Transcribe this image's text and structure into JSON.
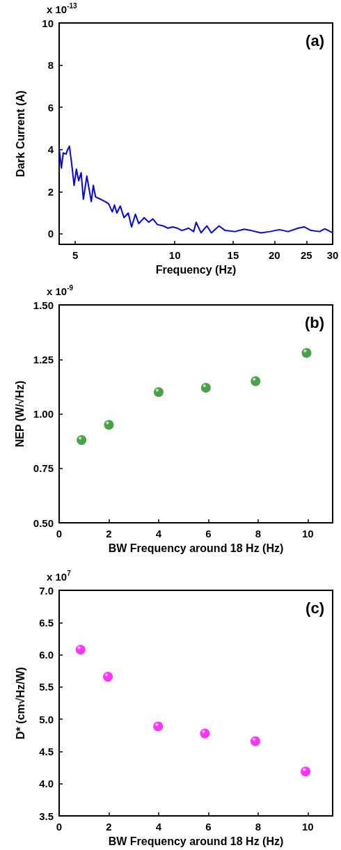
{
  "chart_data": [
    {
      "type": "line",
      "title": "(a)",
      "xlabel": "Frequency (Hz)",
      "ylabel": "Dark Current (A)",
      "annotations": [
        "x 10$^{-13}$"
      ],
      "log": "x",
      "marker": "none",
      "xlim": [
        4.47,
        30
      ],
      "xticks": [
        5,
        10,
        15,
        20,
        25,
        30
      ],
      "ylim": [
        -0.5,
        10
      ],
      "yticks": [
        0,
        2,
        4,
        6,
        8,
        10
      ],
      "series": [
        {
          "color": "#0000ff",
          "x": [
            4.47,
            4.54,
            4.6,
            4.69,
            4.73,
            4.8,
            4.88,
            4.96,
            5.04,
            5.12,
            5.21,
            5.29,
            5.42,
            5.59,
            5.67,
            5.76,
            5.97,
            6.16,
            6.31,
            6.47,
            6.57,
            6.68,
            6.84,
            7.02,
            7.23,
            7.4,
            7.6,
            7.78,
            8.08,
            8.34,
            8.58,
            8.86,
            9.22,
            9.53,
            9.85,
            10.18,
            10.51,
            11.0,
            11.4,
            11.6,
            12.0,
            12.5,
            12.9,
            13.6,
            14.2,
            15.2,
            16.2,
            17.0,
            18.2,
            19.4,
            20.7,
            22.0,
            23.6,
            24.6,
            25.8,
            27.4,
            28.4,
            30.0
          ],
          "values": [
            4.05,
            3.12,
            3.84,
            3.78,
            3.95,
            4.16,
            3.29,
            2.3,
            3.07,
            2.52,
            2.9,
            1.64,
            2.74,
            1.53,
            2.3,
            1.75,
            1.64,
            1.53,
            1.42,
            1.04,
            1.37,
            0.99,
            1.32,
            0.77,
            0.99,
            0.33,
            0.93,
            0.49,
            0.77,
            0.55,
            0.71,
            0.44,
            0.38,
            0.27,
            0.33,
            0.27,
            0.16,
            0.27,
            0.11,
            0.55,
            0.05,
            0.38,
            0.05,
            0.38,
            0.16,
            0.11,
            0.22,
            0.16,
            0.05,
            0.11,
            0.2,
            0.11,
            0.27,
            0.33,
            0.16,
            0.11,
            0.24,
            0.05
          ]
        }
      ]
    },
    {
      "type": "scatter",
      "title": "(b)",
      "xlabel": "BW Frequency around 18 Hz (Hz)",
      "ylabel": "NEP (W/√Hz)",
      "annotations": [
        "x 10$^{-9}$"
      ],
      "marker": "circle",
      "xlim": [
        0,
        11
      ],
      "xticks": [
        0,
        2,
        4,
        6,
        8,
        10
      ],
      "ylim": [
        0.5,
        1.5
      ],
      "yticks": [
        {
          "value": 0.5,
          "label": "0.50"
        },
        0.75,
        {
          "value": 1,
          "label": "1.00"
        },
        1.25,
        {
          "value": 1.5,
          "label": "1.50"
        }
      ],
      "series": [
        {
          "color": "#1a8c1a",
          "x": [
            0.9,
            2.0,
            4.0,
            5.9,
            7.9,
            9.95
          ],
          "values": [
            0.88,
            0.95,
            1.1,
            1.12,
            1.15,
            1.28
          ]
        }
      ]
    },
    {
      "type": "scatter",
      "title": "(c)",
      "xlabel": "BW Frequency around 18 Hz (Hz)",
      "ylabel": "D* (cm√Hz/W)",
      "annotations": [
        "x 10$^{7}$"
      ],
      "marker": "circle",
      "xlim": [
        0,
        11
      ],
      "xticks": [
        0,
        2,
        4,
        6,
        8,
        10
      ],
      "ylim": [
        3.5,
        7
      ],
      "yticks": [
        3.5,
        {
          "value": 4,
          "label": "4.0"
        },
        4.5,
        {
          "value": 5,
          "label": "5.0"
        },
        5.5,
        {
          "value": 6,
          "label": "6.0"
        },
        6.5,
        {
          "value": 7,
          "label": "7.0"
        }
      ],
      "series": [
        {
          "color": "#ff00ff",
          "x": [
            0.86,
            1.96,
            3.98,
            5.86,
            7.89,
            9.91
          ],
          "values": [
            6.08,
            5.66,
            4.89,
            4.78,
            4.66,
            4.19
          ]
        }
      ]
    }
  ]
}
